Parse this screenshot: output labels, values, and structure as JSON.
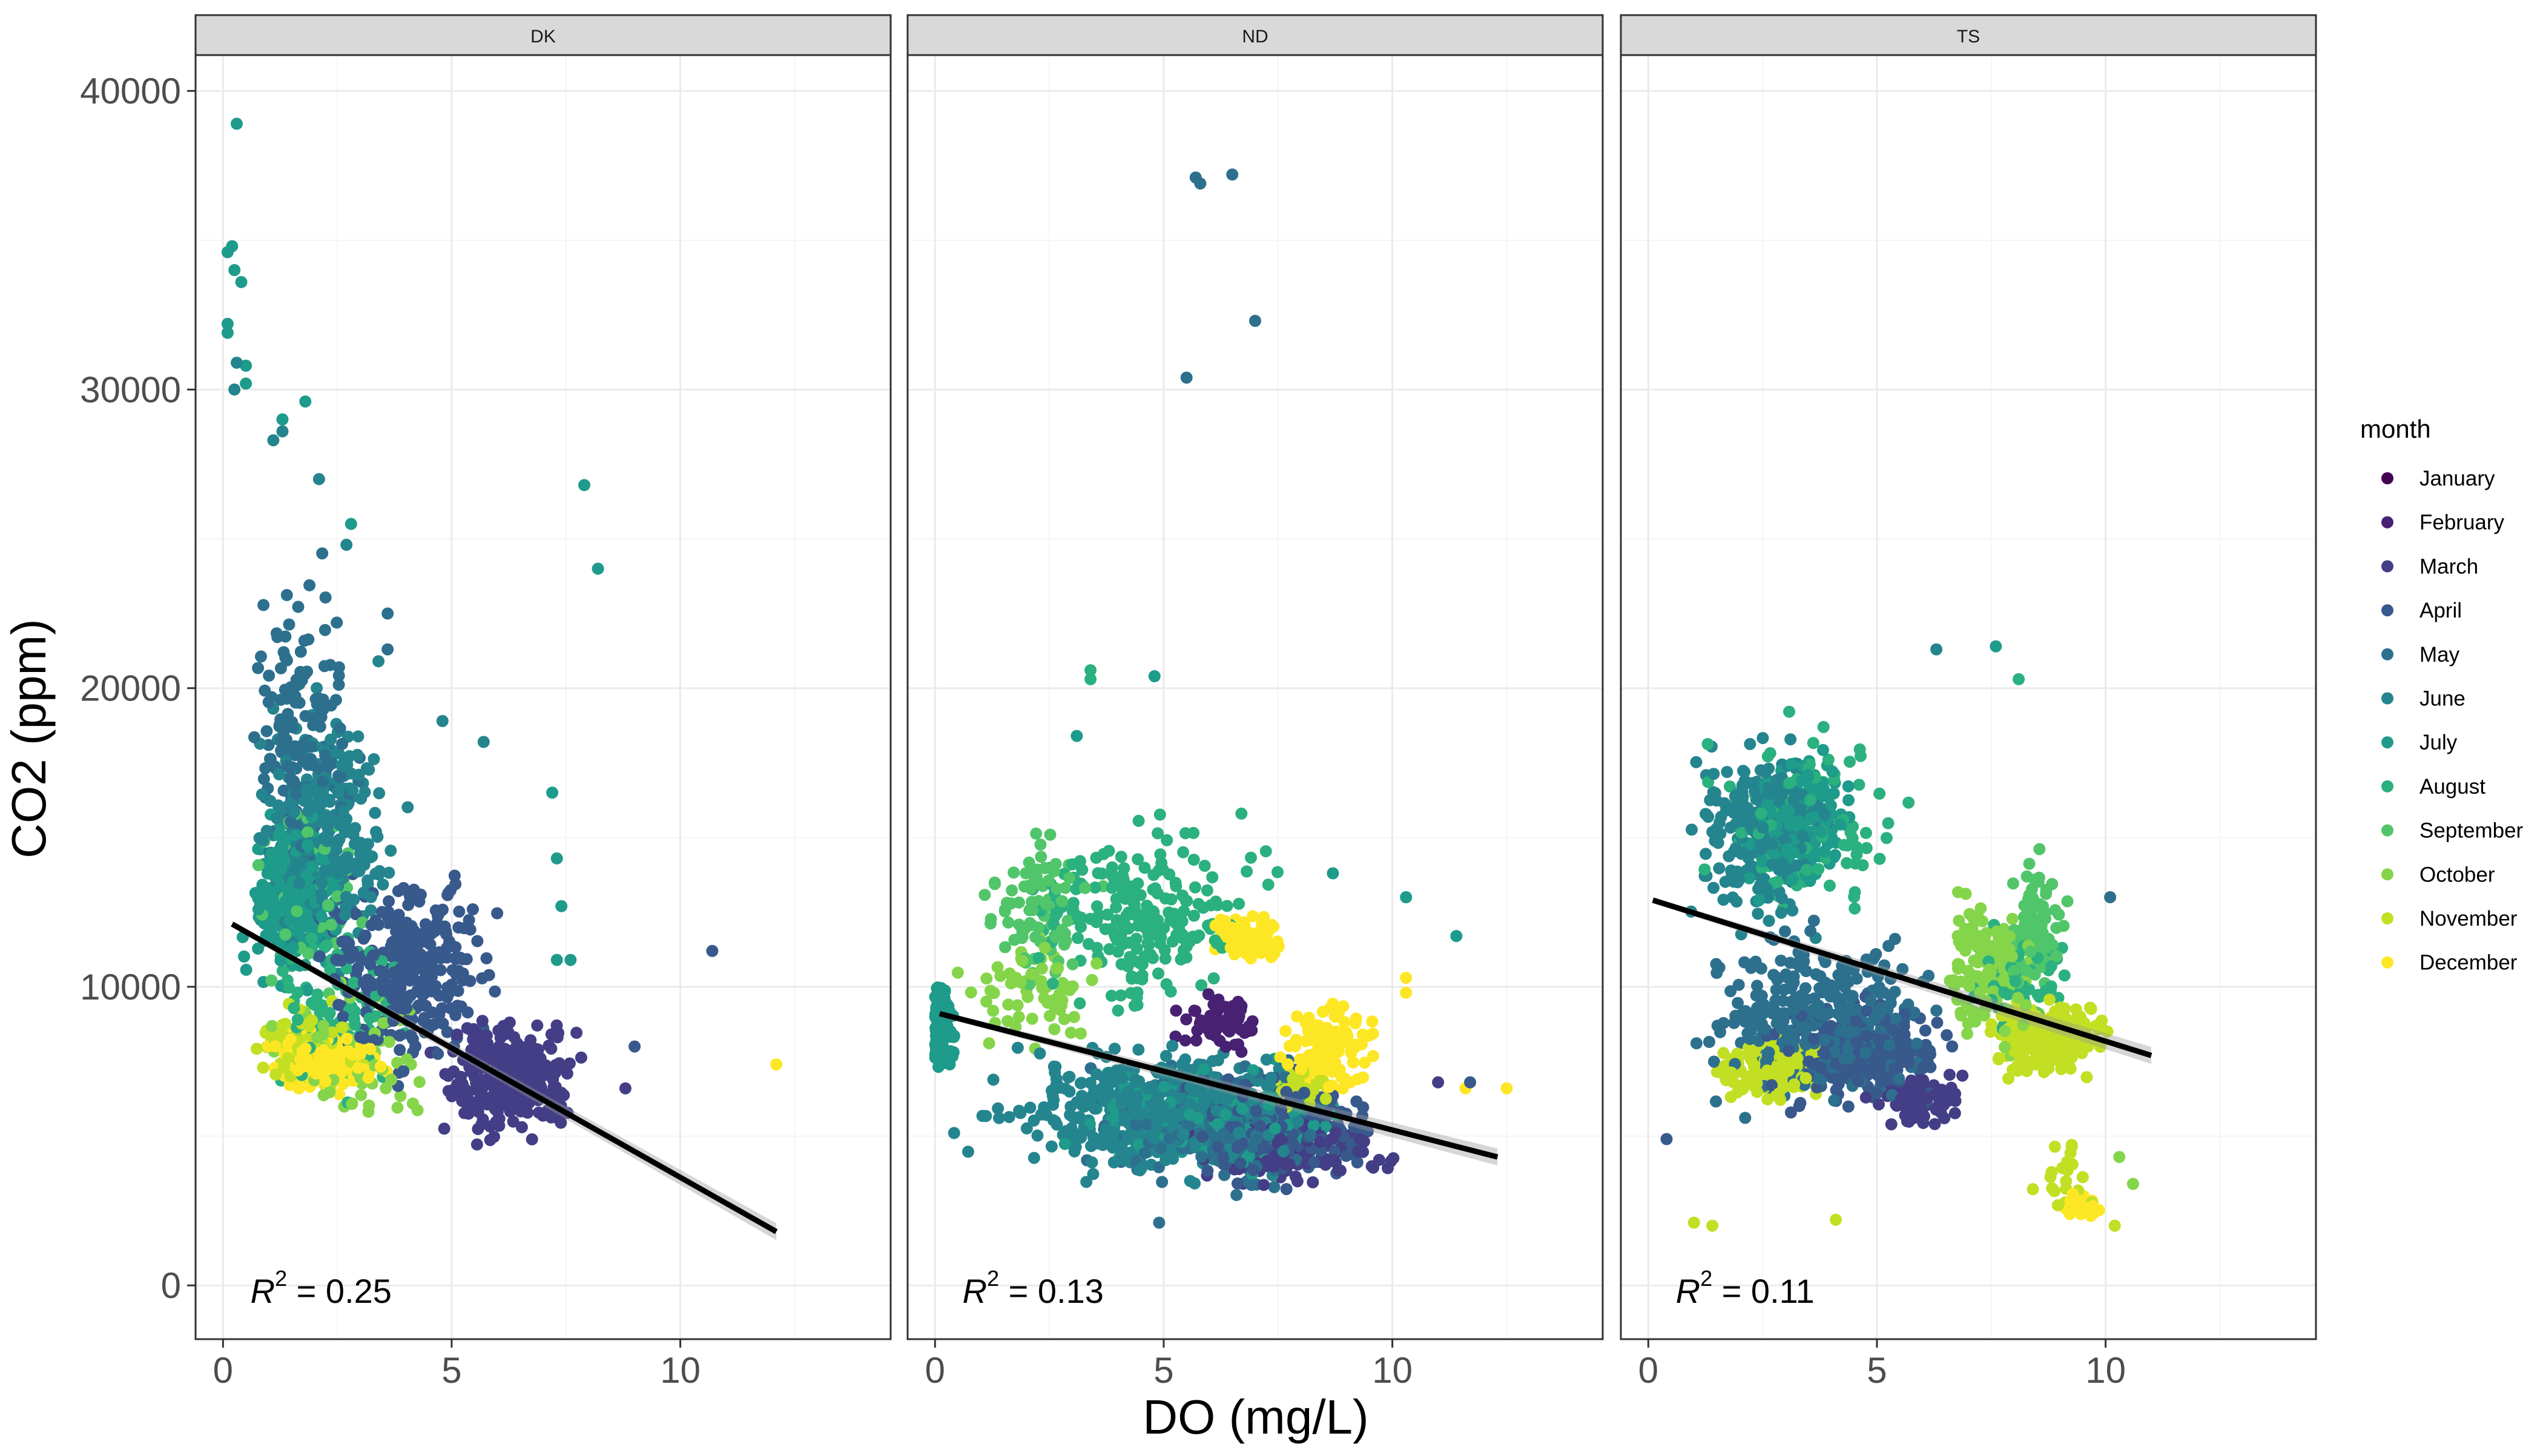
{
  "chart_data": {
    "type": "scatter",
    "title": "",
    "xlabel": "DO (mg/L)",
    "ylabel": "CO2 (ppm)",
    "xlim": [
      -0.6,
      14.6
    ],
    "ylim": [
      -1800,
      41200
    ],
    "x_ticks": [
      "0",
      "5",
      "10"
    ],
    "y_ticks": [
      "0",
      "10000",
      "20000",
      "30000",
      "40000"
    ],
    "grid": true,
    "legend": {
      "title": "month",
      "position": "right",
      "entries": [
        "January",
        "February",
        "March",
        "April",
        "May",
        "June",
        "July",
        "August",
        "September",
        "October",
        "November",
        "December"
      ],
      "colors": [
        "#440154",
        "#482173",
        "#433E85",
        "#38598C",
        "#2D708E",
        "#25858E",
        "#1E9B8A",
        "#2BB07F",
        "#51C56A",
        "#85D54A",
        "#C2DF23",
        "#FDE725"
      ]
    },
    "facets": [
      {
        "name": "DK",
        "r2_prefix": "R",
        "r2_sup": "2",
        "r2_text": " = 0.25",
        "fit_line": {
          "x": [
            0.2,
            12.1
          ],
          "y": [
            12100,
            1800
          ]
        },
        "clusters": [
          {
            "month": "June",
            "x": [
              0,
              4.5
            ],
            "y": [
              9000,
              21000
            ],
            "n": 320
          },
          {
            "month": "May",
            "x": [
              0,
              3.5
            ],
            "y": [
              10000,
              26000
            ],
            "n": 170
          },
          {
            "month": "July",
            "x": [
              0,
              3
            ],
            "y": [
              9000,
              17000
            ],
            "n": 260
          },
          {
            "month": "April",
            "x": [
              1,
              7
            ],
            "y": [
              6000,
              15000
            ],
            "n": 300
          },
          {
            "month": "March",
            "x": [
              4,
              8.5
            ],
            "y": [
              3800,
              10000
            ],
            "n": 260
          },
          {
            "month": "December",
            "x": [
              0.5,
              4
            ],
            "y": [
              6000,
              9000
            ],
            "n": 220
          },
          {
            "month": "November",
            "x": [
              0.3,
              3.5
            ],
            "y": [
              6000,
              10000
            ],
            "n": 110
          },
          {
            "month": "October",
            "x": [
              0.5,
              5
            ],
            "y": [
              4200,
              11000
            ],
            "n": 90
          },
          {
            "month": "August",
            "x": [
              0,
              5
            ],
            "y": [
              5000,
              14000
            ],
            "n": 90
          },
          {
            "month": "September",
            "x": [
              0,
              4
            ],
            "y": [
              8000,
              19000
            ],
            "n": 60
          }
        ],
        "points": [
          {
            "month": "July",
            "x": 0.3,
            "y": 38900
          },
          {
            "month": "July",
            "x": 0.2,
            "y": 34800
          },
          {
            "month": "July",
            "x": 0.1,
            "y": 34600
          },
          {
            "month": "July",
            "x": 0.25,
            "y": 34000
          },
          {
            "month": "July",
            "x": 0.4,
            "y": 33600
          },
          {
            "month": "July",
            "x": 0.1,
            "y": 32200
          },
          {
            "month": "July",
            "x": 0.1,
            "y": 31900
          },
          {
            "month": "June",
            "x": 0.3,
            "y": 30900
          },
          {
            "month": "July",
            "x": 0.5,
            "y": 30800
          },
          {
            "month": "July",
            "x": 0.5,
            "y": 30200
          },
          {
            "month": "June",
            "x": 0.25,
            "y": 30000
          },
          {
            "month": "July",
            "x": 1.8,
            "y": 29600
          },
          {
            "month": "July",
            "x": 1.3,
            "y": 29000
          },
          {
            "month": "June",
            "x": 1.3,
            "y": 28600
          },
          {
            "month": "June",
            "x": 1.1,
            "y": 28300
          },
          {
            "month": "June",
            "x": 2.1,
            "y": 27000
          },
          {
            "month": "July",
            "x": 2.8,
            "y": 25500
          },
          {
            "month": "June",
            "x": 2.7,
            "y": 24800
          },
          {
            "month": "July",
            "x": 7.9,
            "y": 26800
          },
          {
            "month": "July",
            "x": 8.2,
            "y": 24000
          },
          {
            "month": "May",
            "x": 3.6,
            "y": 22500
          },
          {
            "month": "May",
            "x": 3.6,
            "y": 21300
          },
          {
            "month": "June",
            "x": 3.4,
            "y": 20900
          },
          {
            "month": "June",
            "x": 4.8,
            "y": 18900
          },
          {
            "month": "June",
            "x": 5.7,
            "y": 18200
          },
          {
            "month": "July",
            "x": 7.2,
            "y": 16500
          },
          {
            "month": "July",
            "x": 7.3,
            "y": 14300
          },
          {
            "month": "July",
            "x": 7.4,
            "y": 12700
          },
          {
            "month": "July",
            "x": 7.3,
            "y": 10900
          },
          {
            "month": "July",
            "x": 7.6,
            "y": 10900
          },
          {
            "month": "April",
            "x": 10.7,
            "y": 11200
          },
          {
            "month": "April",
            "x": 9,
            "y": 8000
          },
          {
            "month": "March",
            "x": 8.8,
            "y": 6600
          },
          {
            "month": "December",
            "x": 12.1,
            "y": 7400
          }
        ]
      },
      {
        "name": "ND",
        "r2_prefix": "R",
        "r2_sup": "2",
        "r2_text": " = 0.13",
        "fit_line": {
          "x": [
            0.1,
            12.3
          ],
          "y": [
            9100,
            4300
          ]
        },
        "clusters": [
          {
            "month": "July",
            "x": 0,
            "y": [
              6500,
              11000
            ],
            "n": 120
          },
          {
            "month": "June",
            "x": [
              0,
              10
            ],
            "y": [
              2500,
              9000
            ],
            "n": 500
          },
          {
            "month": "May",
            "x": [
              2,
              10
            ],
            "y": [
              2500,
              8500
            ],
            "n": 200
          },
          {
            "month": "April",
            "x": [
              4,
              10.5
            ],
            "y": [
              2500,
              8000
            ],
            "n": 200
          },
          {
            "month": "March",
            "x": [
              5,
              11
            ],
            "y": [
              2500,
              6500
            ],
            "n": 100
          },
          {
            "month": "August",
            "x": [
              1,
              8
            ],
            "y": [
              8000,
              17000
            ],
            "n": 230
          },
          {
            "month": "September",
            "x": [
              0.5,
              4
            ],
            "y": [
              9000,
              16500
            ],
            "n": 90
          },
          {
            "month": "October",
            "x": [
              0.3,
              4
            ],
            "y": [
              7000,
              13000
            ],
            "n": 70
          },
          {
            "month": "February",
            "x": [
              5,
              7.5
            ],
            "y": [
              7500,
              10000
            ],
            "n": 60
          },
          {
            "month": "December",
            "x": [
              5.6,
              8
            ],
            "y": [
              10500,
              12800
            ],
            "n": 90
          },
          {
            "month": "December",
            "x": [
              7.2,
              10
            ],
            "y": [
              6000,
              10000
            ],
            "n": 120
          },
          {
            "month": "November",
            "x": [
              7,
              9
            ],
            "y": [
              5500,
              7500
            ],
            "n": 50
          },
          {
            "month": "July",
            "x": [
              2,
              10
            ],
            "y": [
              3000,
              8000
            ],
            "n": 150
          }
        ],
        "points": [
          {
            "month": "May",
            "x": 5.7,
            "y": 37100
          },
          {
            "month": "May",
            "x": 5.8,
            "y": 36900
          },
          {
            "month": "May",
            "x": 6.5,
            "y": 37200
          },
          {
            "month": "May",
            "x": 7,
            "y": 32300
          },
          {
            "month": "May",
            "x": 5.5,
            "y": 30400
          },
          {
            "month": "August",
            "x": 3.4,
            "y": 20600
          },
          {
            "month": "August",
            "x": 3.4,
            "y": 20300
          },
          {
            "month": "July",
            "x": 4.8,
            "y": 20400
          },
          {
            "month": "July",
            "x": 3.1,
            "y": 18400
          },
          {
            "month": "August",
            "x": 6.7,
            "y": 15800
          },
          {
            "month": "July",
            "x": 8.7,
            "y": 13800
          },
          {
            "month": "July",
            "x": 10.3,
            "y": 13000
          },
          {
            "month": "July",
            "x": 11.4,
            "y": 11700
          },
          {
            "month": "December",
            "x": 10.3,
            "y": 10300
          },
          {
            "month": "December",
            "x": 10.3,
            "y": 9800
          },
          {
            "month": "December",
            "x": 12.5,
            "y": 6600
          },
          {
            "month": "December",
            "x": 11.6,
            "y": 6600
          },
          {
            "month": "March",
            "x": 11,
            "y": 6800
          },
          {
            "month": "April",
            "x": 11.7,
            "y": 6800
          },
          {
            "month": "May",
            "x": 4.9,
            "y": 2100
          }
        ]
      },
      {
        "name": "TS",
        "r2_prefix": "R",
        "r2_sup": "2",
        "r2_text": " = 0.11",
        "fit_line": {
          "x": [
            0.1,
            11
          ],
          "y": [
            12900,
            7700
          ]
        },
        "clusters": [
          {
            "month": "June",
            "x": [
              0.5,
              4.5
            ],
            "y": [
              11000,
              19500
            ],
            "n": 260
          },
          {
            "month": "July",
            "x": [
              1.5,
              5
            ],
            "y": [
              12000,
              19000
            ],
            "n": 160
          },
          {
            "month": "May",
            "x": [
              0,
              7.5
            ],
            "y": [
              5000,
              13000
            ],
            "n": 330
          },
          {
            "month": "April",
            "x": [
              2,
              7.5
            ],
            "y": [
              5000,
              10500
            ],
            "n": 220
          },
          {
            "month": "March",
            "x": [
              4.5,
              7.5
            ],
            "y": [
              5000,
              7500
            ],
            "n": 90
          },
          {
            "month": "November",
            "x": [
              7,
              10.5
            ],
            "y": [
              6500,
              10000
            ],
            "n": 320
          },
          {
            "month": "November",
            "x": [
              0.5,
              4.5
            ],
            "y": [
              5500,
              9000
            ],
            "n": 120
          },
          {
            "month": "October",
            "x": [
              6,
              9
            ],
            "y": [
              7000,
              14500
            ],
            "n": 140
          },
          {
            "month": "September",
            "x": [
              7.5,
              9.5
            ],
            "y": [
              8500,
              15500
            ],
            "n": 90
          },
          {
            "month": "August",
            "x": [
              0.3,
              6.5
            ],
            "y": [
              11000,
              21000
            ],
            "n": 90
          },
          {
            "month": "August",
            "x": [
              6.5,
              10
            ],
            "y": [
              8000,
              13000
            ],
            "n": 60
          },
          {
            "month": "December",
            "x": [
              9,
              10
            ],
            "y": [
              2000,
              3400
            ],
            "n": 40
          },
          {
            "month": "November",
            "x": [
              8,
              10.5
            ],
            "y": [
              1800,
              5500
            ],
            "n": 20
          }
        ],
        "points": [
          {
            "month": "May",
            "x": 10.1,
            "y": 13000
          },
          {
            "month": "July",
            "x": 7.6,
            "y": 21400
          },
          {
            "month": "August",
            "x": 8.1,
            "y": 20300
          },
          {
            "month": "June",
            "x": 6.3,
            "y": 21300
          },
          {
            "month": "October",
            "x": 10.3,
            "y": 4300
          },
          {
            "month": "October",
            "x": 10.6,
            "y": 3400
          },
          {
            "month": "November",
            "x": 1.0,
            "y": 2100
          },
          {
            "month": "November",
            "x": 1.4,
            "y": 2000
          },
          {
            "month": "November",
            "x": 4.1,
            "y": 2200
          },
          {
            "month": "November",
            "x": 10.2,
            "y": 2000
          },
          {
            "month": "April",
            "x": 0.4,
            "y": 4900
          }
        ]
      }
    ]
  }
}
